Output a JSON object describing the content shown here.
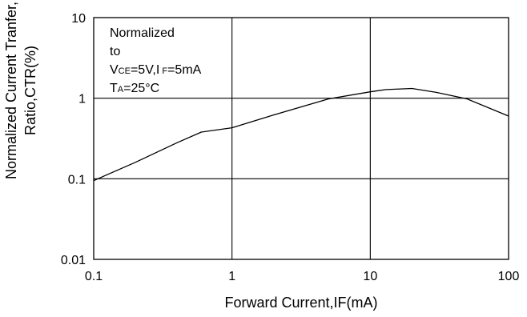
{
  "chart_data": {
    "type": "line",
    "xlabel": "Forward Current,IF(mA)",
    "ylabel_lines": [
      "Normalized Current Tranfer,",
      "Ratio,CTR(%)"
    ],
    "xscale": "log",
    "yscale": "log",
    "xlim": [
      0.1,
      100
    ],
    "ylim": [
      0.01,
      10
    ],
    "x_ticks": [
      "0.1",
      "1",
      "10",
      "100"
    ],
    "y_ticks": [
      "10",
      "1",
      "0.1",
      "0.01"
    ],
    "grid": true,
    "annotation": {
      "line1": "Normalized",
      "line2": "to",
      "cond_v": "V",
      "cond_v_sub": "CE",
      "cond_mid": "=5V,I",
      "cond_i_sub": " F",
      "cond_end": "=5mA",
      "temp_t": "T",
      "temp_sub": "A",
      "temp_end": "=25°C"
    },
    "series": [
      {
        "x": [
          0.1,
          0.2,
          0.4,
          0.6,
          1,
          2,
          5,
          10,
          13,
          20,
          30,
          50,
          100
        ],
        "y": [
          0.095,
          0.16,
          0.28,
          0.38,
          0.43,
          0.62,
          0.98,
          1.2,
          1.28,
          1.32,
          1.18,
          0.98,
          0.6
        ]
      }
    ]
  }
}
